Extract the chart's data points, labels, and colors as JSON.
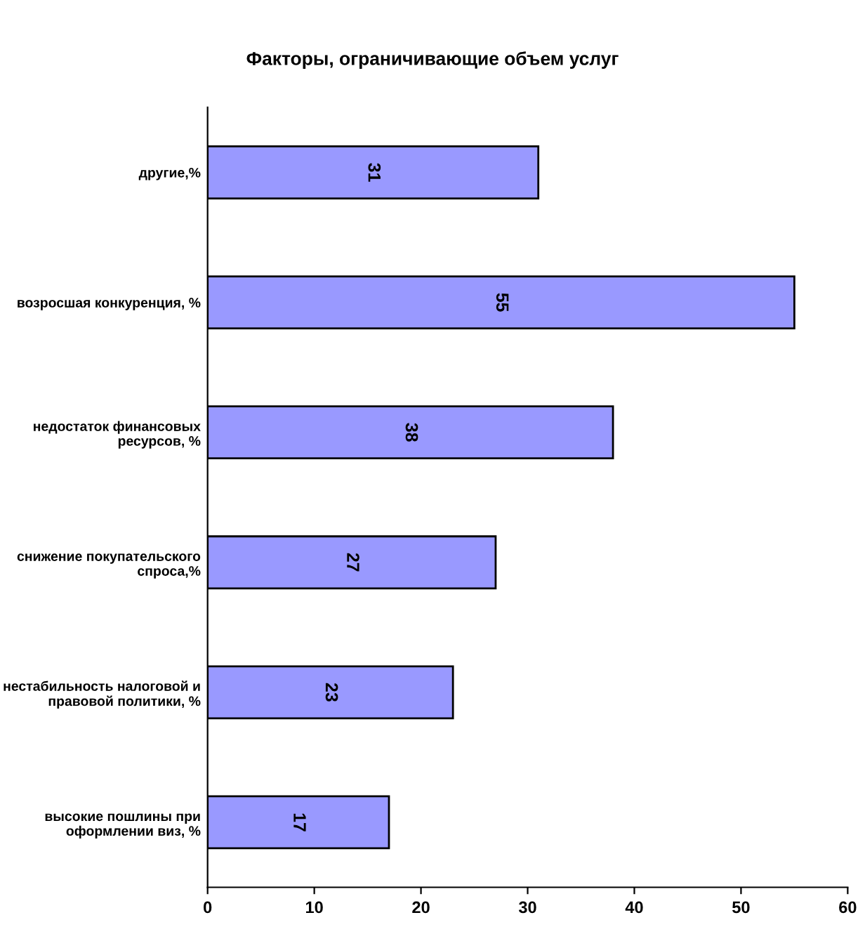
{
  "chart_data": {
    "type": "bar",
    "orientation": "horizontal",
    "title": "Факторы, ограничивающие объем услуг",
    "categories": [
      "другие,%",
      "возросшая конкуренция, %",
      "недостаток финансовых\nресурсов, %",
      "снижение покупательского\nспроса,%",
      "нестабильность налоговой и\nправовой политики, %",
      "высокие пошлины при\nоформлении виз, %"
    ],
    "values": [
      31,
      55,
      38,
      27,
      23,
      17
    ],
    "color": "#9999ff",
    "xlim": [
      0,
      60
    ],
    "xticks": [
      0,
      10,
      20,
      30,
      40,
      50,
      60
    ],
    "data_labels": true,
    "grid": false,
    "legend": false
  }
}
